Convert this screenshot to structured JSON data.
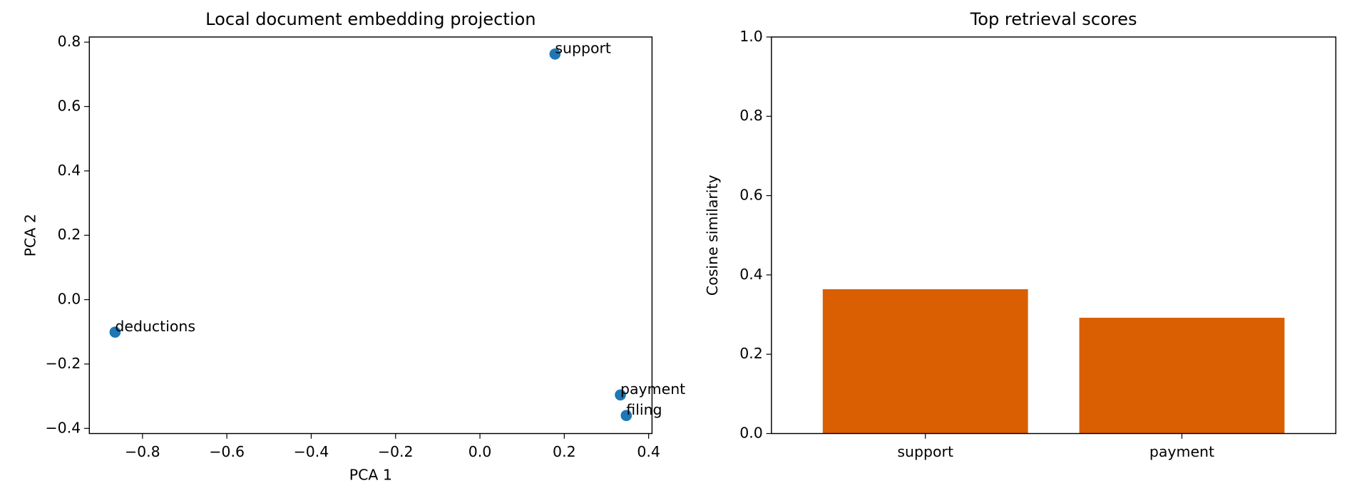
{
  "chart_data": [
    {
      "type": "scatter",
      "title": "Local document embedding projection",
      "x_label": "PCA 1",
      "y_label": "PCA 2",
      "x": [
        0.178,
        -0.865,
        0.333,
        0.347
      ],
      "values": [
        0.763,
        -0.101,
        -0.296,
        -0.36
      ],
      "labels": [
        "support",
        "deductions",
        "payment",
        "filing"
      ],
      "color": "#1f77b4",
      "xlim": [
        -0.926,
        0.408
      ],
      "ylim": [
        -0.416,
        0.816
      ],
      "xticks": [
        {
          "value": -0.8,
          "label": "−0.8"
        },
        {
          "value": -0.6,
          "label": "−0.6"
        },
        {
          "value": -0.4,
          "label": "−0.4"
        },
        {
          "value": -0.2,
          "label": "−0.2"
        },
        {
          "value": 0,
          "label": "0.0"
        },
        0.2,
        0.4
      ],
      "yticks": [
        {
          "value": -0.4,
          "label": "−0.4"
        },
        {
          "value": -0.2,
          "label": "−0.2"
        },
        {
          "value": 0,
          "label": "0.0"
        },
        0.2,
        0.4,
        0.6,
        0.8
      ]
    },
    {
      "type": "bar",
      "title": "Top retrieval scores",
      "y_label": "Cosine similarity",
      "categories": [
        "support",
        "payment"
      ],
      "values": [
        0.364,
        0.292
      ],
      "color": "#d95f02",
      "ylim": [
        0,
        1
      ],
      "yticks": [
        {
          "value": 0,
          "label": "0.0"
        },
        0.2,
        0.4,
        0.6,
        0.8,
        {
          "value": 1,
          "label": "1.0"
        }
      ]
    }
  ]
}
